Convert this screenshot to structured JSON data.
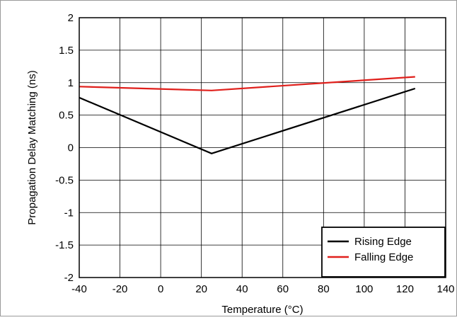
{
  "chart_data": {
    "type": "line",
    "title": "",
    "xlabel": "Temperature (°C)",
    "ylabel": "Propagation Delay Matching (ns)",
    "xlim": [
      -40,
      140
    ],
    "ylim": [
      -2,
      2
    ],
    "x_ticks": [
      -40,
      -20,
      0,
      20,
      40,
      60,
      80,
      100,
      120,
      140
    ],
    "y_ticks": [
      -2,
      -1.5,
      -1,
      -0.5,
      0,
      0.5,
      1,
      1.5,
      2
    ],
    "grid": true,
    "legend_position": "bottom-right",
    "series": [
      {
        "name": "Rising Edge",
        "color": "#000000",
        "x": [
          -40,
          25,
          125
        ],
        "y": [
          0.77,
          -0.09,
          0.91
        ]
      },
      {
        "name": "Falling Edge",
        "color": "#e0201c",
        "x": [
          -40,
          25,
          125
        ],
        "y": [
          0.94,
          0.88,
          1.09
        ]
      }
    ]
  }
}
